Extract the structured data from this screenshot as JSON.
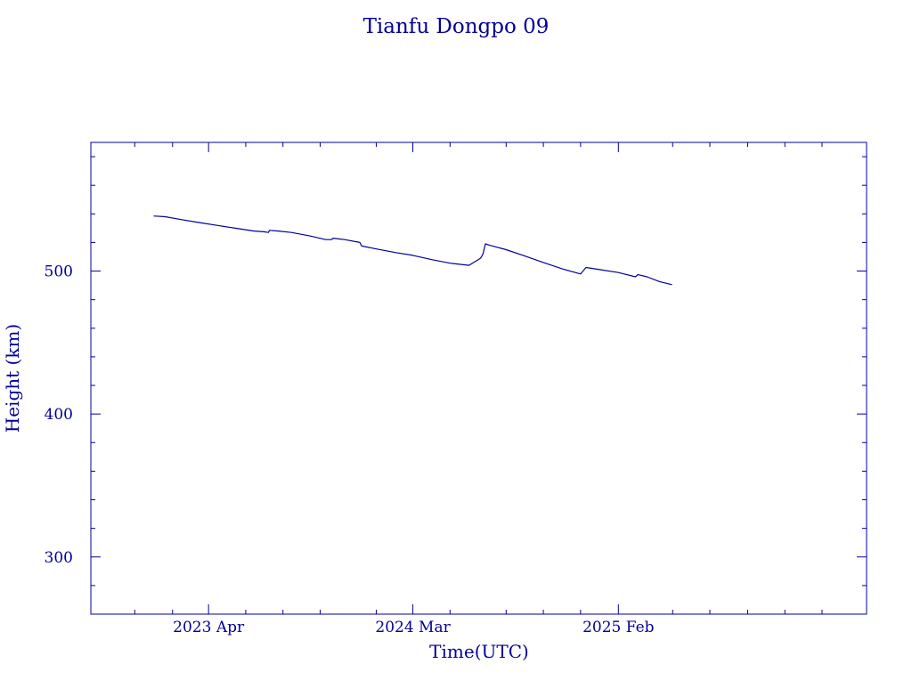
{
  "chart_data": {
    "type": "line",
    "title": "Tianfu Dongpo 09",
    "xlabel": "Time(UTC)",
    "ylabel": "Height (km)",
    "color": "#000099",
    "grid": false,
    "x_axis": {
      "type": "date",
      "range": [
        "2022-09-20",
        "2026-03-15"
      ],
      "major_ticks": [
        {
          "date": "2023-04-01",
          "label": "2023 Apr"
        },
        {
          "date": "2024-03-01",
          "label": "2024 Mar"
        },
        {
          "date": "2025-02-01",
          "label": "2025 Feb"
        }
      ],
      "minor_ticks": [
        "2022-12-01",
        "2023-02-01",
        "2023-06-01",
        "2023-08-01",
        "2023-10-01",
        "2024-01-01",
        "2024-05-01",
        "2024-08-01",
        "2024-10-01",
        "2024-12-01",
        "2025-05-01",
        "2025-07-01",
        "2025-09-01",
        "2025-11-01",
        "2026-01-01"
      ]
    },
    "y_axis": {
      "range": [
        260,
        590
      ],
      "major_ticks": [
        {
          "value": 300,
          "label": "300"
        },
        {
          "value": 400,
          "label": "400"
        },
        {
          "value": 500,
          "label": "500"
        }
      ],
      "minor_step": 20
    },
    "series": [
      {
        "x": [
          "2023-01-01",
          "2023-01-20",
          "2023-02-15",
          "2023-03-15",
          "2023-04-15",
          "2023-05-15",
          "2023-06-15",
          "2023-07-01",
          "2023-07-08",
          "2023-07-10",
          "2023-07-25",
          "2023-08-15",
          "2023-09-15",
          "2023-10-10",
          "2023-10-20",
          "2023-10-22",
          "2023-11-10",
          "2023-12-05",
          "2023-12-08",
          "2024-01-01",
          "2024-02-01",
          "2024-03-01",
          "2024-04-01",
          "2024-05-01",
          "2024-06-01",
          "2024-06-20",
          "2024-06-24",
          "2024-06-28",
          "2024-07-05",
          "2024-08-01",
          "2024-09-01",
          "2024-10-01",
          "2024-11-01",
          "2024-12-01",
          "2024-12-10",
          "2025-01-01",
          "2025-02-01",
          "2025-03-01",
          "2025-03-05",
          "2025-03-20",
          "2025-04-10",
          "2025-04-30"
        ],
        "y": [
          538.5,
          538,
          536,
          534,
          532,
          530,
          528,
          527.5,
          527,
          528.5,
          528,
          527,
          524.5,
          522,
          522,
          523,
          522,
          520,
          517.5,
          515.5,
          513,
          511,
          508,
          505.5,
          504,
          509,
          512,
          519,
          518,
          515,
          510.5,
          506,
          501.5,
          498,
          502.5,
          501,
          499,
          496,
          497.5,
          496,
          492.5,
          490.5
        ]
      }
    ]
  }
}
